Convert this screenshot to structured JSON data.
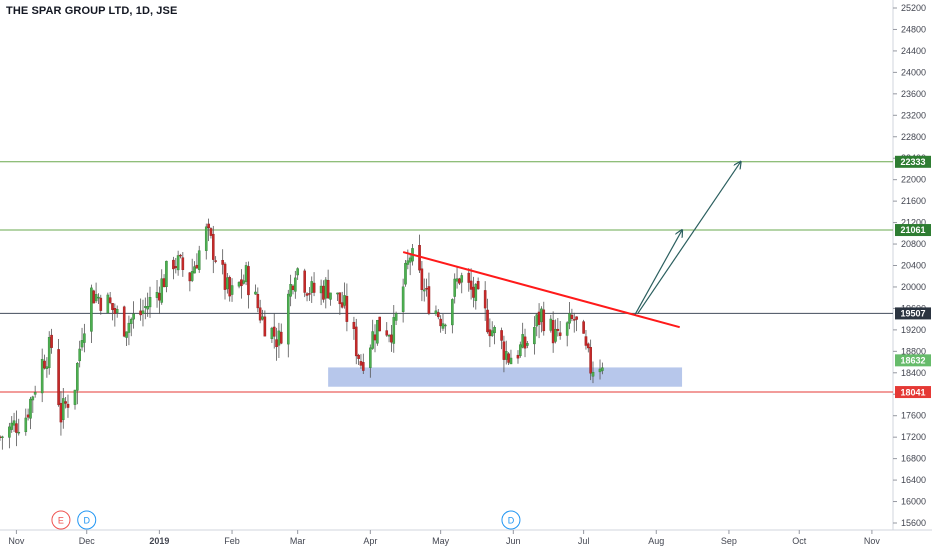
{
  "header": {
    "title": "THE SPAR GROUP LTD, 1D, JSE"
  },
  "colors": {
    "up": "#26a69a",
    "up_body": "#4caf50",
    "down": "#ef5350",
    "down_body": "#c62828",
    "wick": "#555555",
    "green_line": "#6aa84f",
    "navy_line": "#434d5b",
    "red_line": "#e53935",
    "trend": "#ff1a1a",
    "arrow": "#2b5f5f",
    "zone": "#9fb4e4",
    "axis": "#434651"
  },
  "chart_data": {
    "type": "candlestick",
    "y_axis": {
      "min": 15600,
      "max": 25200,
      "ticks": [
        15600,
        16000,
        16400,
        16800,
        17200,
        17600,
        18000,
        18400,
        18800,
        19200,
        19600,
        20000,
        20400,
        20800,
        21200,
        21600,
        22000,
        22400,
        22800,
        23200,
        23600,
        24000,
        24400,
        24800,
        25200
      ]
    },
    "x_axis": {
      "start": "2018-10-25",
      "end": "2019-11-10",
      "ticks": [
        {
          "date": "2018-11-01",
          "label": "Nov"
        },
        {
          "date": "2018-12-01",
          "label": "Dec"
        },
        {
          "date": "2019-01-01",
          "label": "2019"
        },
        {
          "date": "2019-02-01",
          "label": "Feb"
        },
        {
          "date": "2019-03-01",
          "label": "Mar"
        },
        {
          "date": "2019-04-01",
          "label": "Apr"
        },
        {
          "date": "2019-05-01",
          "label": "May"
        },
        {
          "date": "2019-06-01",
          "label": "Jun"
        },
        {
          "date": "2019-07-01",
          "label": "Jul"
        },
        {
          "date": "2019-08-01",
          "label": "Aug"
        },
        {
          "date": "2019-09-01",
          "label": "Sep"
        },
        {
          "date": "2019-10-01",
          "label": "Oct"
        },
        {
          "date": "2019-11-01",
          "label": "Nov"
        }
      ]
    },
    "series": [
      {
        "kind": "close_path",
        "points": [
          [
            "2018-10-25",
            17200
          ],
          [
            "2018-11-05",
            17600
          ],
          [
            "2018-11-12",
            18600
          ],
          [
            "2018-11-16",
            18900
          ],
          [
            "2018-11-20",
            17600
          ],
          [
            "2018-11-26",
            18200
          ],
          [
            "2018-11-29",
            19200
          ],
          [
            "2018-12-03",
            19900
          ],
          [
            "2018-12-10",
            19700
          ],
          [
            "2018-12-17",
            19300
          ],
          [
            "2018-12-24",
            19500
          ],
          [
            "2018-12-31",
            19900
          ],
          [
            "2019-01-07",
            20500
          ],
          [
            "2019-01-14",
            20200
          ],
          [
            "2019-01-21",
            21000
          ],
          [
            "2019-01-25",
            20600
          ],
          [
            "2019-01-31",
            19800
          ],
          [
            "2019-02-07",
            20200
          ],
          [
            "2019-02-14",
            19400
          ],
          [
            "2019-02-21",
            19000
          ],
          [
            "2019-02-28",
            20400
          ],
          [
            "2019-03-07",
            19900
          ],
          [
            "2019-03-14",
            20000
          ],
          [
            "2019-03-21",
            19600
          ],
          [
            "2019-03-28",
            18600
          ],
          [
            "2019-04-04",
            19300
          ],
          [
            "2019-04-11",
            19200
          ],
          [
            "2019-04-18",
            20600
          ],
          [
            "2019-04-25",
            19800
          ],
          [
            "2019-05-02",
            19400
          ],
          [
            "2019-05-09",
            20200
          ],
          [
            "2019-05-16",
            19800
          ],
          [
            "2019-05-23",
            19200
          ],
          [
            "2019-05-30",
            18700
          ],
          [
            "2019-06-06",
            18900
          ],
          [
            "2019-06-13",
            19500
          ],
          [
            "2019-06-20",
            19000
          ],
          [
            "2019-06-27",
            19400
          ],
          [
            "2019-07-04",
            18500
          ],
          [
            "2019-07-09",
            18632
          ]
        ]
      }
    ],
    "horizontal_levels": [
      {
        "value": 22333,
        "label": "22333",
        "style": "green"
      },
      {
        "value": 21061,
        "label": "21061",
        "style": "green"
      },
      {
        "value": 19507,
        "label": "19507",
        "style": "navy"
      },
      {
        "value": 18041,
        "label": "18041",
        "style": "red"
      }
    ],
    "last_price": {
      "value": 18632,
      "label": "18632"
    },
    "support_zone": {
      "from": "2019-03-14",
      "to": "2019-08-12",
      "low": 18140,
      "high": 18500
    },
    "trendline": {
      "from": [
        "2019-04-15",
        20650
      ],
      "to": [
        "2019-08-11",
        19250
      ]
    },
    "arrows": [
      {
        "from": [
          "2019-07-23",
          19490
        ],
        "to": [
          "2019-08-12",
          21061
        ]
      },
      {
        "from": [
          "2019-07-24",
          19500
        ],
        "to": [
          "2019-09-06",
          22333
        ]
      }
    ],
    "event_markers": [
      {
        "date": "2018-11-20",
        "label": "E",
        "color": "#ef5350"
      },
      {
        "date": "2018-12-01",
        "label": "D",
        "color": "#2196f3"
      },
      {
        "date": "2019-05-31",
        "label": "D",
        "color": "#2196f3"
      }
    ]
  }
}
